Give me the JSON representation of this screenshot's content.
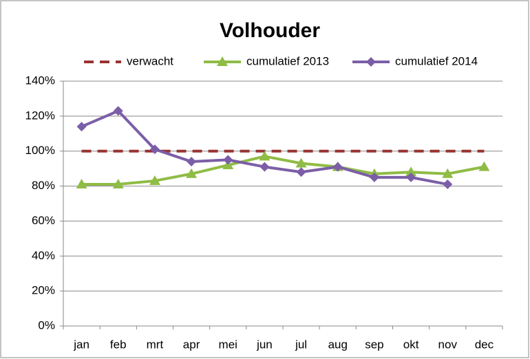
{
  "chart_data": {
    "type": "line",
    "title": "Volhouder",
    "categories": [
      "jan",
      "feb",
      "mrt",
      "apr",
      "mei",
      "jun",
      "jul",
      "aug",
      "sep",
      "okt",
      "nov",
      "dec"
    ],
    "series": [
      {
        "name": "verwacht",
        "color": "#993333",
        "style": "dashed",
        "marker": null,
        "values": [
          100,
          100,
          100,
          100,
          100,
          100,
          100,
          100,
          100,
          100,
          100,
          100
        ]
      },
      {
        "name": "cumulatief 2013",
        "color": "#8fbc45",
        "style": "solid",
        "marker": "triangle",
        "values": [
          81,
          81,
          83,
          87,
          92,
          97,
          93,
          91,
          87,
          88,
          87,
          91
        ]
      },
      {
        "name": "cumulatief 2014",
        "color": "#7b5ea7",
        "style": "solid",
        "marker": "diamond",
        "values": [
          114,
          123,
          101,
          94,
          95,
          91,
          88,
          91,
          85,
          85,
          81,
          null
        ]
      }
    ],
    "ylim": [
      0,
      140
    ],
    "yticks": [
      {
        "value": 0,
        "label": "0%"
      },
      {
        "value": 20,
        "label": "20%"
      },
      {
        "value": 40,
        "label": "40%"
      },
      {
        "value": 60,
        "label": "60%"
      },
      {
        "value": 80,
        "label": "80%"
      },
      {
        "value": 100,
        "label": "100%"
      },
      {
        "value": 120,
        "label": "120%"
      },
      {
        "value": 140,
        "label": "140%"
      }
    ],
    "grid": true,
    "legend": "top"
  }
}
